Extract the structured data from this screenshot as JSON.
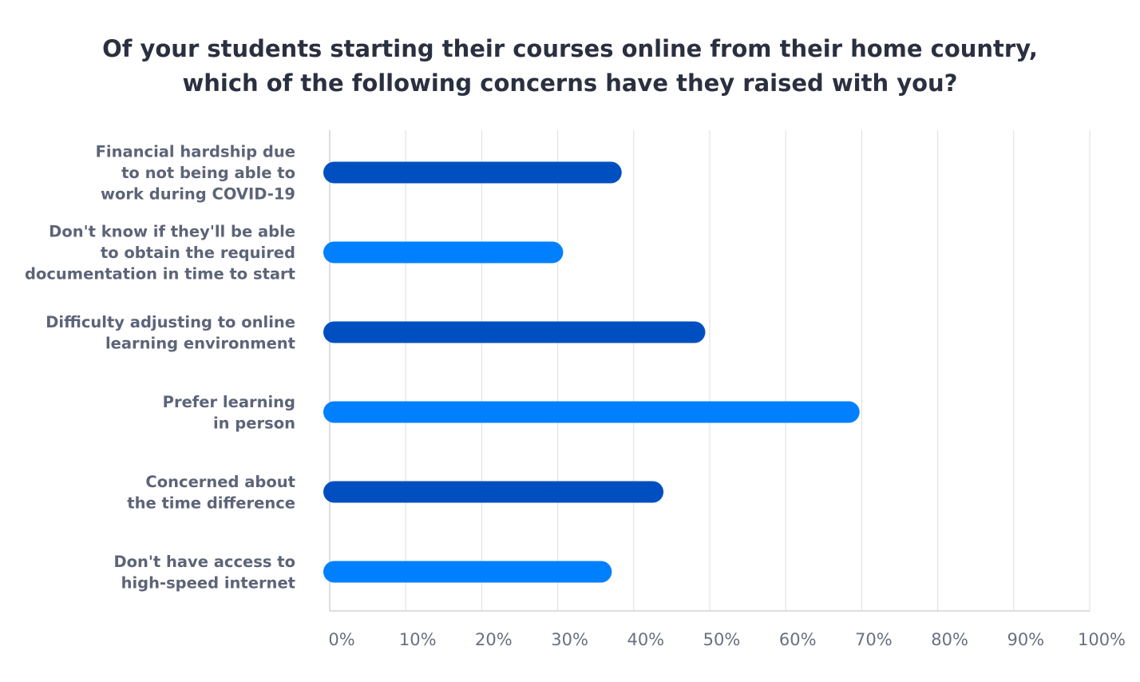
{
  "chart_data": {
    "type": "bar",
    "orientation": "horizontal",
    "title": "Of your students starting their courses online from their home country,\nwhich of the following concerns have they raised with you?",
    "xlabel": "",
    "ylabel": "",
    "xlim": [
      0,
      100
    ],
    "grid": true,
    "unit": "%",
    "tick_values": [
      0,
      10,
      20,
      30,
      40,
      50,
      60,
      70,
      80,
      90,
      100
    ],
    "tick_labels": [
      "0%",
      "10%",
      "20%",
      "30%",
      "40%",
      "50%",
      "60%",
      "70%",
      "80%",
      "90%",
      "100%"
    ],
    "categories": [
      [
        "Financial hardship due",
        "to not being able to",
        "work during COVID-19"
      ],
      [
        "Don't know if they'll be able",
        "to obtain the required",
        "documentation in time to start"
      ],
      [
        "Difficulty adjusting to online",
        "learning environment"
      ],
      [
        "Prefer learning",
        "in person"
      ],
      [
        "Concerned about",
        "the time difference"
      ],
      [
        "Don't have access to",
        "high-speed internet"
      ]
    ],
    "values": [
      38,
      30.3,
      49,
      69.3,
      43.5,
      36.7
    ],
    "bar_colors": [
      "#004fc1",
      "#0080ff",
      "#004fc1",
      "#0080ff",
      "#004fc1",
      "#0080ff"
    ],
    "colors": {
      "grid": "#dedede",
      "axis": "#c9c9c9",
      "label_text": "#5d6478",
      "tick_text": "#6a7080",
      "title_text": "#2b3040"
    }
  }
}
